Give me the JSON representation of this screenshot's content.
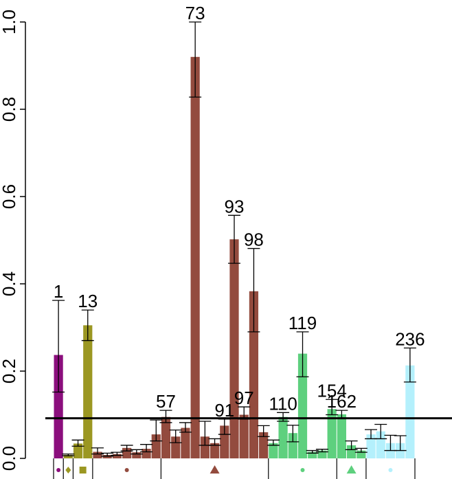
{
  "chart_data": {
    "type": "bar",
    "title": "",
    "xlabel": "",
    "ylabel": "",
    "ylim": [
      0,
      1.0
    ],
    "yticks": [
      "0.0",
      "0.2",
      "0.4",
      "0.6",
      "0.8",
      "1.0"
    ],
    "threshold_line": 0.092,
    "bars": [
      {
        "v": 0.237,
        "lo": 0.152,
        "hi": 0.362,
        "color": "#8b0e7d",
        "label": "1"
      },
      {
        "v": 0.008,
        "lo": 0.006,
        "hi": 0.01,
        "color": "#9b9722"
      },
      {
        "v": 0.034,
        "lo": 0.028,
        "hi": 0.042,
        "color": "#9b9722"
      },
      {
        "v": 0.305,
        "lo": 0.27,
        "hi": 0.34,
        "color": "#9b9722",
        "label": "13"
      },
      {
        "v": 0.015,
        "lo": 0.01,
        "hi": 0.024,
        "color": "#934b3e"
      },
      {
        "v": 0.008,
        "lo": 0.005,
        "hi": 0.012,
        "color": "#934b3e"
      },
      {
        "v": 0.01,
        "lo": 0.007,
        "hi": 0.014,
        "color": "#934b3e"
      },
      {
        "v": 0.024,
        "lo": 0.017,
        "hi": 0.03,
        "color": "#934b3e"
      },
      {
        "v": 0.014,
        "lo": 0.01,
        "hi": 0.02,
        "color": "#934b3e"
      },
      {
        "v": 0.022,
        "lo": 0.015,
        "hi": 0.032,
        "color": "#934b3e"
      },
      {
        "v": 0.055,
        "lo": 0.04,
        "hi": 0.088,
        "color": "#934b3e"
      },
      {
        "v": 0.095,
        "lo": 0.082,
        "hi": 0.11,
        "color": "#934b3e",
        "label": "57"
      },
      {
        "v": 0.05,
        "lo": 0.036,
        "hi": 0.065,
        "color": "#934b3e"
      },
      {
        "v": 0.07,
        "lo": 0.06,
        "hi": 0.082,
        "color": "#934b3e"
      },
      {
        "v": 0.92,
        "lo": 0.828,
        "hi": 1.0,
        "color": "#934b3e",
        "label": "73"
      },
      {
        "v": 0.05,
        "lo": 0.03,
        "hi": 0.085,
        "color": "#934b3e"
      },
      {
        "v": 0.035,
        "lo": 0.03,
        "hi": 0.045,
        "color": "#934b3e"
      },
      {
        "v": 0.075,
        "lo": 0.055,
        "hi": 0.09,
        "color": "#934b3e",
        "label": "91"
      },
      {
        "v": 0.502,
        "lo": 0.447,
        "hi": 0.557,
        "color": "#934b3e",
        "label": "93"
      },
      {
        "v": 0.1,
        "lo": 0.09,
        "hi": 0.118,
        "color": "#934b3e",
        "label": "97"
      },
      {
        "v": 0.383,
        "lo": 0.29,
        "hi": 0.481,
        "color": "#934b3e",
        "label": "98"
      },
      {
        "v": 0.06,
        "lo": 0.05,
        "hi": 0.075,
        "color": "#934b3e"
      },
      {
        "v": 0.035,
        "lo": 0.03,
        "hi": 0.042,
        "color": "#5ed07e"
      },
      {
        "v": 0.095,
        "lo": 0.085,
        "hi": 0.105,
        "color": "#5ed07e",
        "label": "110"
      },
      {
        "v": 0.058,
        "lo": 0.038,
        "hi": 0.076,
        "color": "#5ed07e"
      },
      {
        "v": 0.24,
        "lo": 0.187,
        "hi": 0.29,
        "color": "#5ed07e",
        "label": "119"
      },
      {
        "v": 0.015,
        "lo": 0.012,
        "hi": 0.018,
        "color": "#5ed07e"
      },
      {
        "v": 0.018,
        "lo": 0.015,
        "hi": 0.021,
        "color": "#5ed07e"
      },
      {
        "v": 0.113,
        "lo": 0.1,
        "hi": 0.135,
        "color": "#5ed07e",
        "label": "154"
      },
      {
        "v": 0.101,
        "lo": 0.092,
        "hi": 0.11,
        "color": "#5ed07e",
        "label": "162"
      },
      {
        "v": 0.03,
        "lo": 0.02,
        "hi": 0.04,
        "color": "#5ed07e"
      },
      {
        "v": 0.018,
        "lo": 0.014,
        "hi": 0.023,
        "color": "#5ed07e"
      },
      {
        "v": 0.055,
        "lo": 0.045,
        "hi": 0.066,
        "color": "#b4f0fc"
      },
      {
        "v": 0.062,
        "lo": 0.045,
        "hi": 0.078,
        "color": "#b4f0fc"
      },
      {
        "v": 0.035,
        "lo": 0.018,
        "hi": 0.053,
        "color": "#b4f0fc"
      },
      {
        "v": 0.035,
        "lo": 0.018,
        "hi": 0.052,
        "color": "#b4f0fc"
      },
      {
        "v": 0.213,
        "lo": 0.175,
        "hi": 0.253,
        "color": "#b4f0fc",
        "label": "236"
      }
    ],
    "groups": [
      {
        "from": 0,
        "to": 0,
        "marker": "dot",
        "color": "#8b0e7d"
      },
      {
        "from": 1,
        "to": 1,
        "marker": "diamond",
        "color": "#9b9722"
      },
      {
        "from": 2,
        "to": 3,
        "marker": "square",
        "color": "#9b9722"
      },
      {
        "from": 4,
        "to": 10,
        "marker": "dot",
        "color": "#934b3e"
      },
      {
        "from": 11,
        "to": 21,
        "marker": "triangle",
        "color": "#934b3e"
      },
      {
        "from": 22,
        "to": 28,
        "marker": "dot",
        "color": "#5ed07e"
      },
      {
        "from": 29,
        "to": 31,
        "marker": "triangle",
        "color": "#5ed07e"
      },
      {
        "from": 32,
        "to": 36,
        "marker": "dot",
        "color": "#b4f0fc"
      }
    ]
  }
}
